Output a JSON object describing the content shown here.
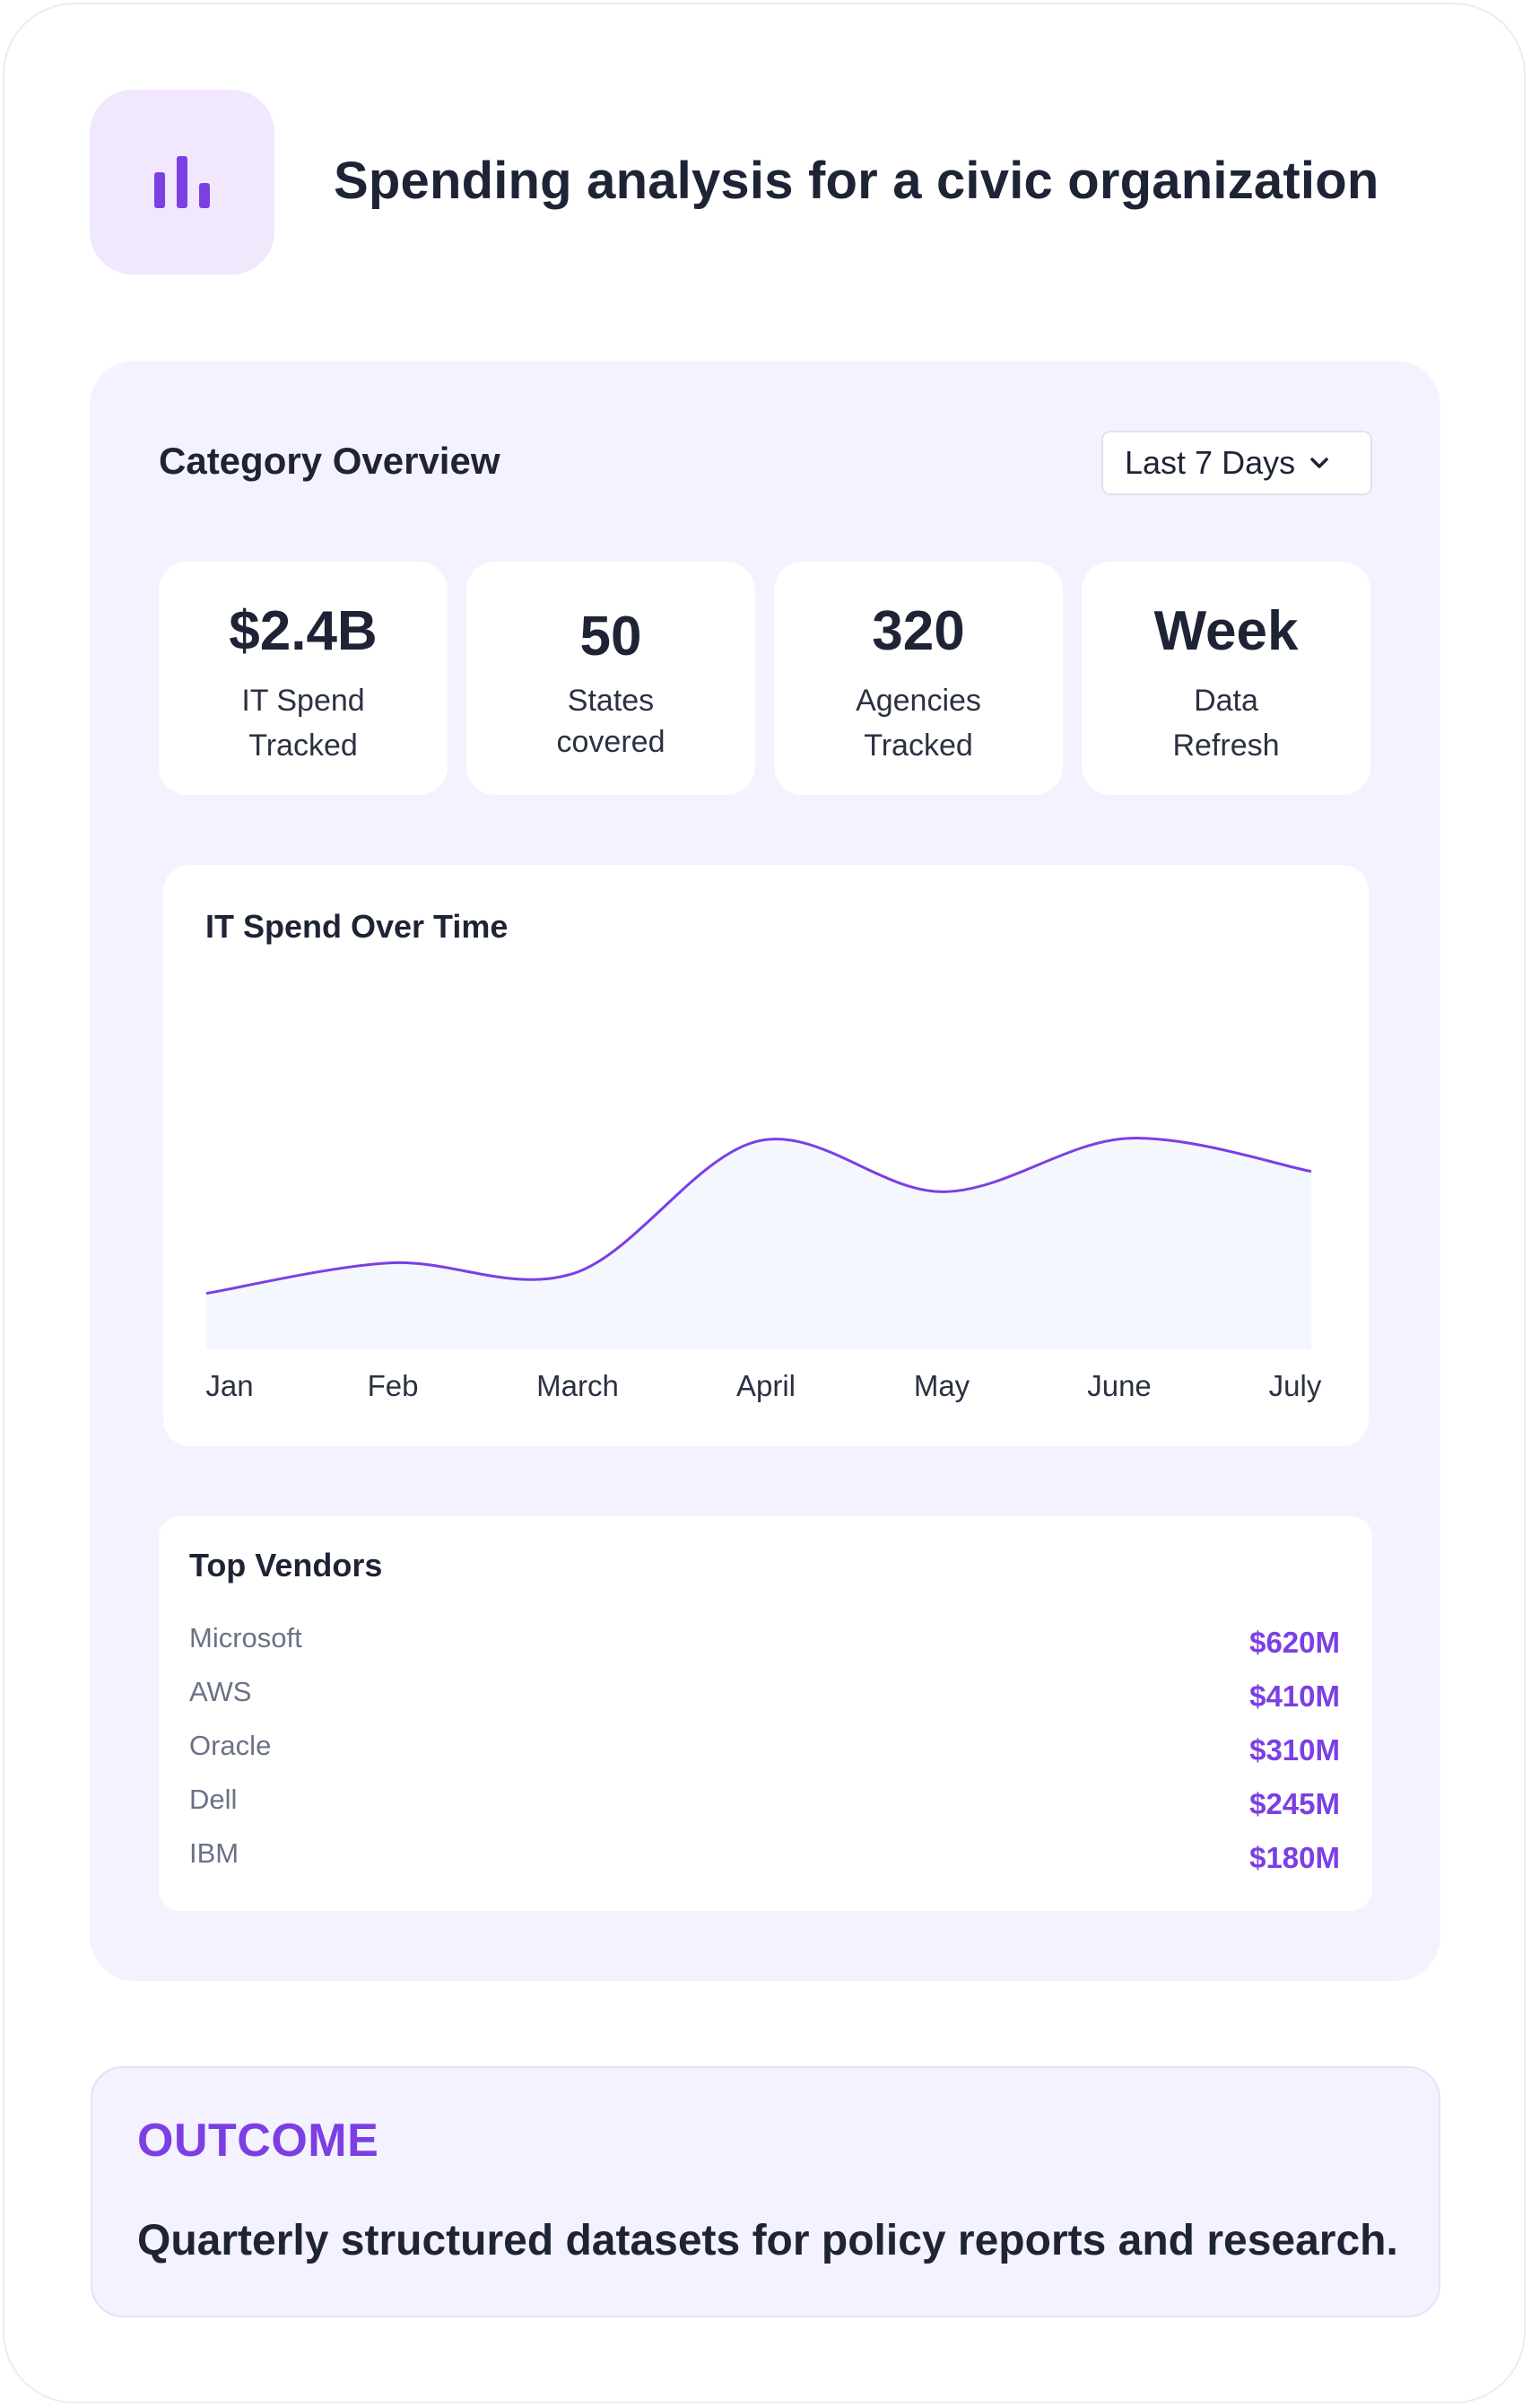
{
  "header": {
    "icon": "bar-chart-icon",
    "title": "Spending analysis for a civic organization"
  },
  "overview": {
    "title": "Category Overview",
    "range_select": {
      "value": "Last 7 Days",
      "icon": "chevron-down-icon"
    },
    "stats": [
      {
        "value": "$2.4B",
        "label": "IT Spend Tracked"
      },
      {
        "value": "50",
        "label": "States covered"
      },
      {
        "value": "320",
        "label": "Agencies Tracked"
      },
      {
        "value": "Week",
        "label": "Data Refresh"
      }
    ]
  },
  "chart_data": {
    "type": "area",
    "title": "IT Spend Over Time",
    "xlabel": "",
    "ylabel": "",
    "categories": [
      "Jan",
      "Feb",
      "March",
      "April",
      "May",
      "June",
      "July"
    ],
    "values": [
      0.22,
      0.34,
      0.3,
      0.82,
      0.62,
      0.83,
      0.7
    ],
    "ylim": [
      0,
      1.2
    ],
    "grid": false,
    "line_color": "#7b3fe4",
    "fill_color": "#f5f7fe"
  },
  "vendors": {
    "title": "Top Vendors",
    "items": [
      {
        "name": "Microsoft",
        "amount": "$620M"
      },
      {
        "name": "AWS",
        "amount": "$410M"
      },
      {
        "name": "Oracle",
        "amount": "$310M"
      },
      {
        "name": "Dell",
        "amount": "$245M"
      },
      {
        "name": "IBM",
        "amount": "$180M"
      }
    ]
  },
  "outcome": {
    "label": "OUTCOME",
    "text": "Quarterly structured datasets for policy reports and research."
  },
  "colors": {
    "accent": "#7b3fe4",
    "panel": "#f4f2fe",
    "text": "#1e2435"
  }
}
